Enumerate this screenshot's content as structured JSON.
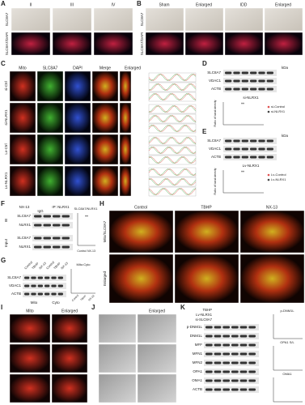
{
  "A": {
    "letter": "A",
    "cols": [
      "II",
      "III",
      "IV"
    ],
    "rows": [
      "SLC8A7",
      "SLC8A7/DAPI"
    ]
  },
  "B": {
    "letter": "B",
    "cols": [
      "Sham",
      "Enlarged",
      "IDD",
      "Enlarged"
    ],
    "rows": [
      "SLC8A7",
      "SLC8A7/DAPI"
    ]
  },
  "C": {
    "letter": "C",
    "cols": [
      "Mito",
      "SLC8A7",
      "DAPI",
      "Merge",
      "Enlarged"
    ],
    "rows": [
      "si-Ctrl",
      "si-NLRX1",
      "Lv-Ctrl",
      "Lv-NLRX1"
    ]
  },
  "D": {
    "letter": "D",
    "unit": "kDa",
    "bands": [
      "SLC8A7",
      "VDAC1",
      "ACTB"
    ],
    "group": "si-NLRX1",
    "legend": [
      "si-Control",
      "si-NLRX1"
    ],
    "ylabel": "Ratio of band density",
    "sig": "**"
  },
  "E": {
    "letter": "E",
    "unit": "kDa",
    "bands": [
      "SLC8A7",
      "VDAC1",
      "ACTB"
    ],
    "group": "Lv-NLRX1",
    "legend": [
      "Lv-Control",
      "Lv-NLRX1"
    ],
    "ylabel": "Ratio of band density",
    "sig": "**"
  },
  "F": {
    "letter": "F",
    "treatment": "NX-13",
    "lanes": [
      "IgG",
      "IP: NLRX1"
    ],
    "blocks": [
      "IB",
      "Input"
    ],
    "bands": [
      "SLC8A7",
      "NLRX1",
      "SLC8A7",
      "NLRX1"
    ],
    "plot_title": "SLC8A7/NLRX1",
    "groups": [
      "Control",
      "NX-13"
    ],
    "sig": "**"
  },
  "G": {
    "letter": "G",
    "lanes": [
      "Control",
      "TBHP",
      "NX-13",
      "Control",
      "TBHP",
      "NX-13"
    ],
    "bands": [
      "SLC8A7",
      "VDAC1",
      "ACTB"
    ],
    "fractions": [
      "Mito",
      "Cyto"
    ],
    "plot_title": "Mito:Cyto",
    "groups": [
      "Control",
      "TBHP",
      "NX-13"
    ]
  },
  "H": {
    "letter": "H",
    "cols": [
      "Control",
      "TBHP",
      "NX-13"
    ],
    "rows": [
      "Mito/SLC8A7",
      "Enlarged"
    ]
  },
  "I": {
    "letter": "I",
    "cols": [
      "Mito",
      "Enlarged"
    ]
  },
  "J": {
    "letter": "J",
    "cols": [
      "Enlarged"
    ]
  },
  "K": {
    "letter": "K",
    "conditions": [
      "TBHP",
      "Lv-NLRX1",
      "si-SLC8A7"
    ],
    "bands": [
      "p-DNM1L",
      "DNM1L",
      "MFF",
      "MFN1",
      "MFN2",
      "OPA1",
      "OMA1",
      "ACTB"
    ],
    "plots": [
      "p-DNM1L",
      "OPA1 S/L",
      "OMA1"
    ]
  }
}
